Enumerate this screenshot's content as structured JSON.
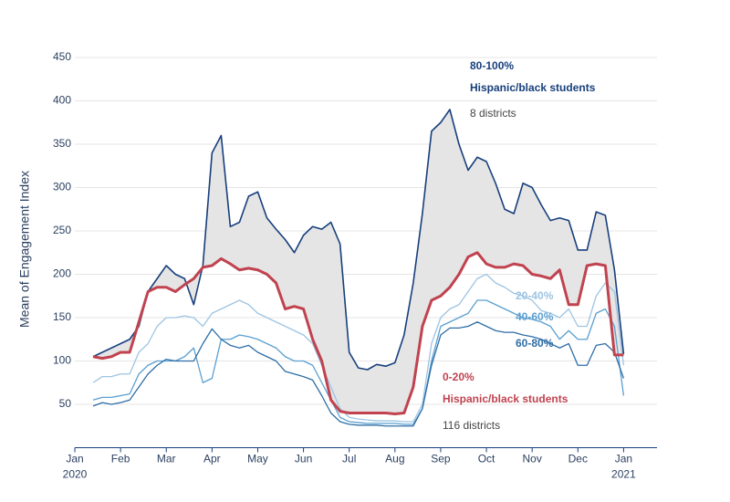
{
  "chart_data": {
    "type": "line",
    "y_label": "Mean of Engagement Index",
    "x": [
      0.4,
      0.6,
      0.8,
      1.0,
      1.2,
      1.4,
      1.6,
      1.8,
      2.0,
      2.2,
      2.4,
      2.6,
      2.8,
      3.0,
      3.2,
      3.4,
      3.6,
      3.8,
      4.0,
      4.2,
      4.4,
      4.6,
      4.8,
      5.0,
      5.2,
      5.4,
      5.6,
      5.8,
      6.0,
      6.2,
      6.4,
      6.6,
      6.8,
      7.0,
      7.2,
      7.4,
      7.6,
      7.8,
      8.0,
      8.2,
      8.4,
      8.6,
      8.8,
      9.0,
      9.2,
      9.4,
      9.6,
      9.8,
      10.0,
      10.2,
      10.4,
      10.6,
      10.8,
      11.0,
      11.2,
      11.4,
      11.6,
      11.8,
      12.0
    ],
    "xlim": [
      0,
      12.73
    ],
    "xticks": [
      {
        "value": 0,
        "label": "Jan\n2020"
      },
      {
        "value": 1,
        "label": "Feb"
      },
      {
        "value": 2,
        "label": "Mar"
      },
      {
        "value": 3,
        "label": "Apr"
      },
      {
        "value": 4,
        "label": "May"
      },
      {
        "value": 5,
        "label": "Jun"
      },
      {
        "value": 6,
        "label": "Jul"
      },
      {
        "value": 7,
        "label": "Aug"
      },
      {
        "value": 8,
        "label": "Sep"
      },
      {
        "value": 9,
        "label": "Oct"
      },
      {
        "value": 10,
        "label": "Nov"
      },
      {
        "value": 11,
        "label": "Dec"
      },
      {
        "value": 12,
        "label": "Jan\n2021"
      }
    ],
    "ylim": [
      0,
      450
    ],
    "yticks": [
      50,
      100,
      150,
      200,
      250,
      300,
      350,
      400,
      450
    ],
    "grid": true,
    "shade_color": "#e5e5e5",
    "series": [
      {
        "name": "0-20%",
        "color": "#c0434f",
        "values": [
          105,
          103,
          105,
          110,
          110,
          145,
          180,
          185,
          185,
          180,
          188,
          195,
          208,
          210,
          218,
          212,
          205,
          207,
          205,
          200,
          190,
          160,
          163,
          160,
          125,
          100,
          55,
          42,
          40,
          40,
          40,
          40,
          40,
          39,
          40,
          70,
          140,
          170,
          175,
          185,
          200,
          220,
          225,
          212,
          208,
          208,
          212,
          210,
          200,
          198,
          195,
          205,
          165,
          165,
          210,
          212,
          210,
          107,
          107
        ]
      },
      {
        "name": "20-40%",
        "color": "#9ec4e2",
        "values": [
          75,
          82,
          82,
          85,
          85,
          110,
          120,
          140,
          150,
          150,
          152,
          150,
          140,
          155,
          160,
          165,
          170,
          165,
          155,
          150,
          145,
          140,
          135,
          130,
          120,
          95,
          70,
          45,
          35,
          33,
          32,
          31,
          31,
          31,
          30,
          30,
          50,
          120,
          150,
          160,
          165,
          180,
          195,
          200,
          190,
          185,
          178,
          175,
          170,
          158,
          155,
          150,
          160,
          140,
          140,
          175,
          190,
          180,
          95
        ]
      },
      {
        "name": "40-60%",
        "color": "#5a9fd0",
        "values": [
          55,
          58,
          58,
          60,
          62,
          85,
          95,
          100,
          100,
          100,
          105,
          115,
          75,
          80,
          125,
          125,
          130,
          128,
          125,
          120,
          115,
          105,
          100,
          100,
          95,
          75,
          55,
          35,
          30,
          29,
          28,
          28,
          28,
          28,
          27,
          27,
          45,
          100,
          140,
          145,
          150,
          155,
          170,
          170,
          165,
          160,
          155,
          150,
          148,
          145,
          140,
          125,
          135,
          125,
          125,
          155,
          160,
          140,
          60
        ]
      },
      {
        "name": "60-80%",
        "color": "#2e6ea6",
        "values": [
          48,
          52,
          50,
          52,
          55,
          70,
          85,
          95,
          102,
          100,
          100,
          100,
          120,
          137,
          125,
          118,
          115,
          118,
          110,
          105,
          100,
          88,
          85,
          82,
          78,
          60,
          40,
          30,
          27,
          26,
          26,
          26,
          25,
          25,
          25,
          25,
          45,
          95,
          130,
          138,
          138,
          140,
          145,
          140,
          135,
          133,
          133,
          130,
          128,
          125,
          120,
          115,
          120,
          95,
          95,
          118,
          120,
          110,
          80
        ]
      },
      {
        "name": "80-100%",
        "color": "#173f7c",
        "values": [
          105,
          110,
          115,
          120,
          125,
          140,
          180,
          195,
          210,
          200,
          195,
          165,
          210,
          340,
          360,
          255,
          260,
          290,
          295,
          265,
          252,
          240,
          225,
          245,
          255,
          252,
          260,
          235,
          110,
          92,
          90,
          96,
          94,
          98,
          130,
          190,
          270,
          365,
          375,
          390,
          350,
          320,
          335,
          330,
          305,
          275,
          270,
          305,
          300,
          280,
          262,
          265,
          262,
          228,
          228,
          272,
          268,
          205,
          108
        ]
      }
    ],
    "annotations": [
      {
        "text": "Hispanic/black students",
        "color": "#173f7c"
      },
      {
        "text": "8 districts",
        "color": "#444444"
      },
      {
        "text": "Hispanic/black students",
        "color": "#c0434f"
      },
      {
        "text": "116 districts",
        "color": "#444444"
      }
    ]
  }
}
